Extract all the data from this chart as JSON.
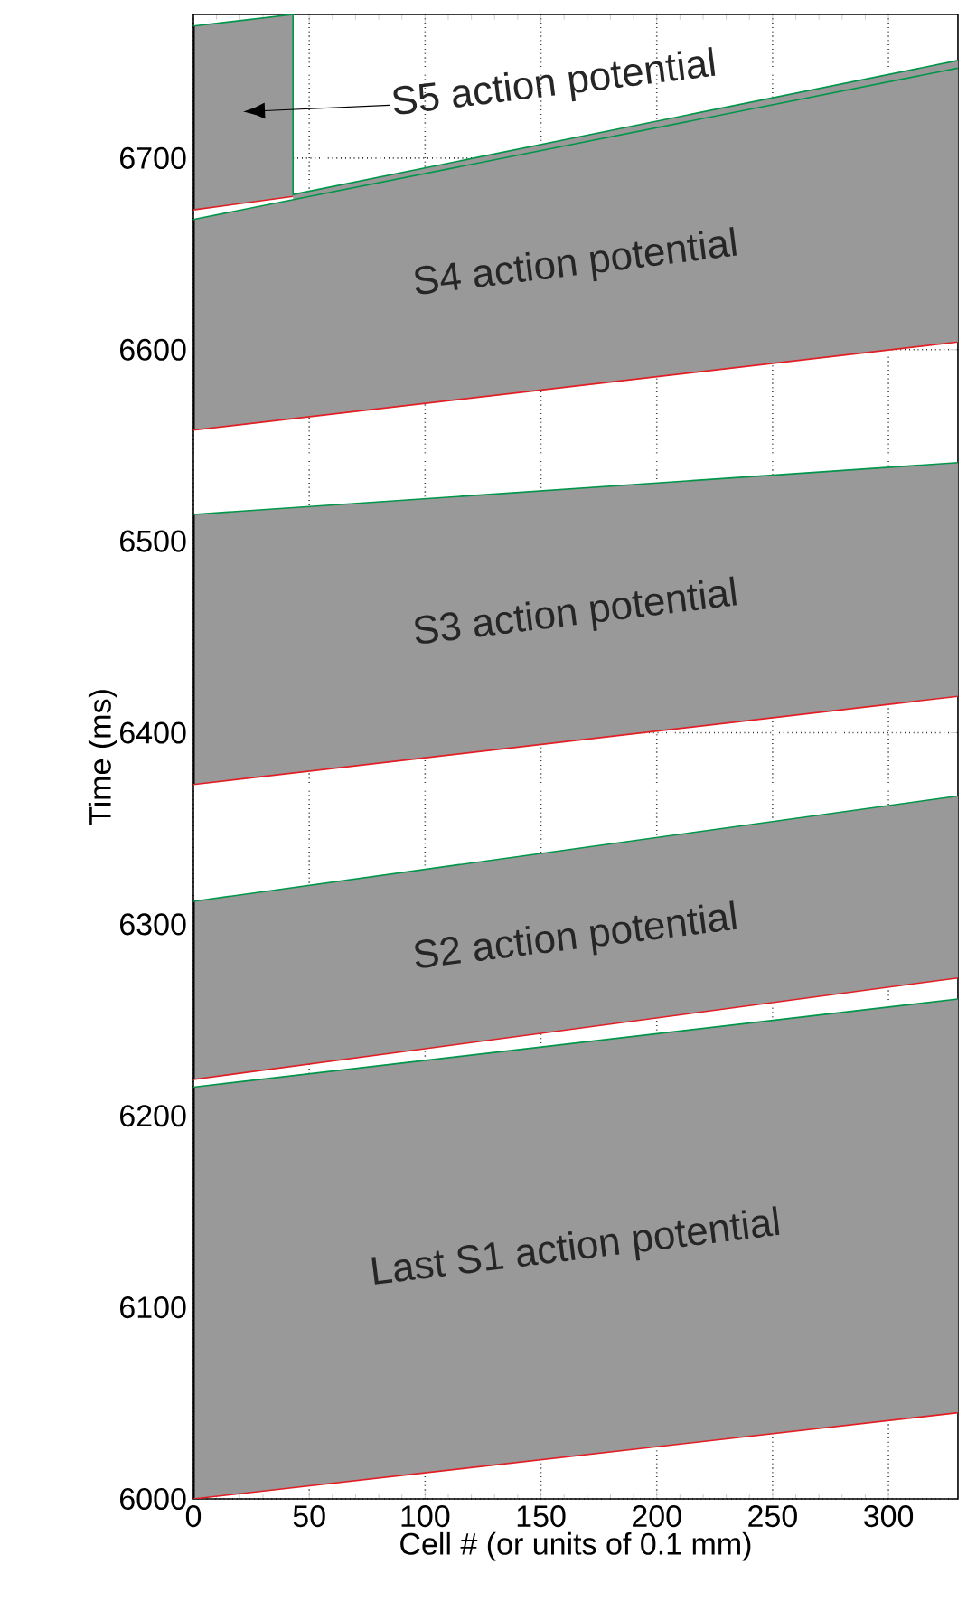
{
  "chart_data": {
    "type": "line",
    "xlabel": "Cell # (or units of 0.1 mm)",
    "ylabel": "Time (ms)",
    "xlim": [
      0,
      330
    ],
    "ylim": [
      6000,
      6775
    ],
    "xticks": [
      0,
      50,
      100,
      150,
      200,
      250,
      300
    ],
    "yticks": [
      6000,
      6100,
      6200,
      6300,
      6400,
      6500,
      6600,
      6700
    ],
    "grid": true,
    "series": [
      {
        "color": "#e21e24",
        "x": [
          0,
          330
        ],
        "values": [
          6000,
          6045
        ]
      },
      {
        "color": "#00964a",
        "x": [
          0,
          330
        ],
        "values": [
          6215,
          6261
        ],
        "lower": [
          6000,
          6045
        ],
        "upper": [
          6215,
          6261
        ]
      },
      {
        "color": "#e21e24",
        "x": [
          0,
          330
        ],
        "values": [
          6219,
          6272
        ]
      },
      {
        "color": "#00964a",
        "x": [
          0,
          330
        ],
        "values": [
          6312,
          6367
        ],
        "lower": [
          6219,
          6272
        ],
        "upper": [
          6312,
          6367
        ]
      },
      {
        "color": "#e21e24",
        "x": [
          0,
          330
        ],
        "values": [
          6373,
          6419
        ]
      },
      {
        "color": "#00964a",
        "x": [
          0,
          330
        ],
        "values": [
          6514,
          6541
        ],
        "lower": [
          6373,
          6419
        ],
        "upper": [
          6514,
          6541
        ]
      },
      {
        "color": "#e21e24",
        "x": [
          0,
          330
        ],
        "values": [
          6558,
          6604
        ]
      },
      {
        "color": "#00964a",
        "x": [
          0,
          330
        ],
        "values": [
          6668,
          6747
        ],
        "lower": [
          6558,
          6604
        ],
        "upper": [
          6668,
          6747
        ]
      },
      {
        "color": "#e21e24",
        "x": [
          0,
          43
        ],
        "values": [
          6673,
          6680
        ]
      },
      {
        "color": "#00964a",
        "x": [
          0,
          43,
          43,
          330
        ],
        "values": [
          6769,
          6775,
          6681,
          6751
        ],
        "lower": [
          6673,
          6680,
          6678,
          6747
        ],
        "upper": [
          6769,
          6775,
          6681,
          6751
        ]
      }
    ],
    "annotations": [
      "S5 action potential",
      "S4 action potential",
      "S3 action potential",
      "S2 action potential",
      "Last S1 action potential"
    ]
  }
}
